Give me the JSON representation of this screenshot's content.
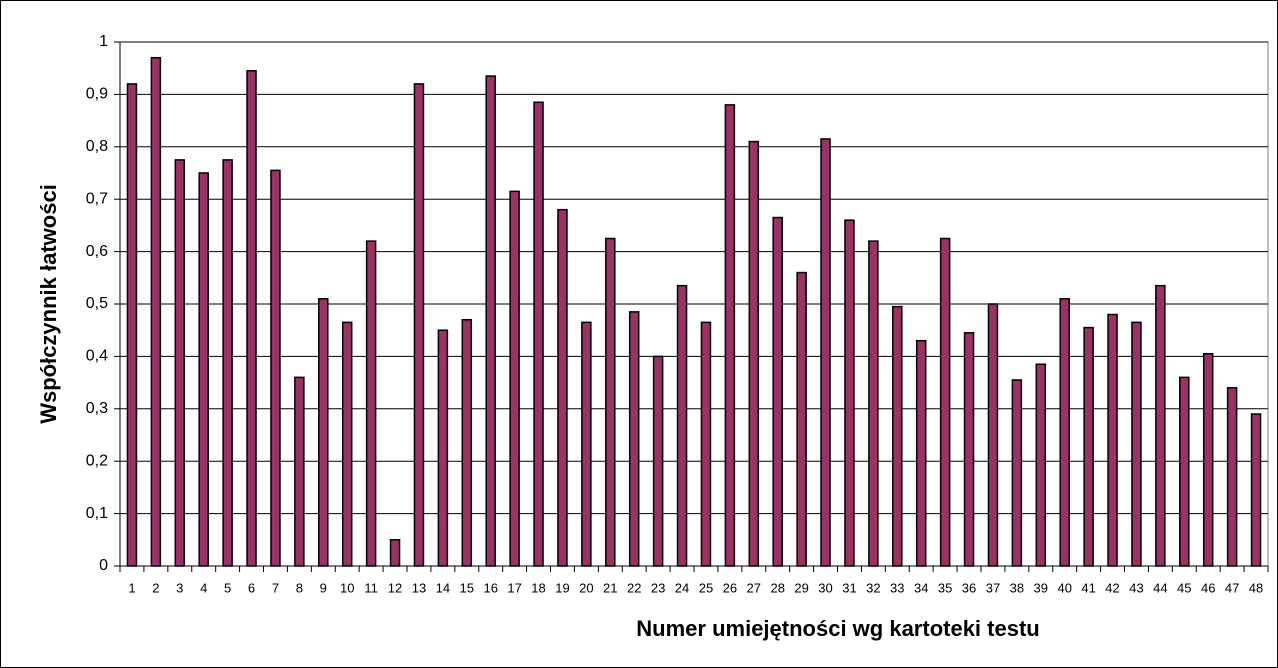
{
  "chart_data": {
    "type": "bar",
    "xlabel": "Numer umiejętności wg kartoteki testu",
    "ylabel": "Współczynnik łatwości",
    "categories": [
      "1",
      "2",
      "3",
      "4",
      "5",
      "6",
      "7",
      "8",
      "9",
      "10",
      "11",
      "12",
      "13",
      "14",
      "15",
      "16",
      "17",
      "18",
      "19",
      "20",
      "21",
      "22",
      "23",
      "24",
      "25",
      "26",
      "27",
      "28",
      "29",
      "30",
      "31",
      "32",
      "33",
      "34",
      "35",
      "36",
      "37",
      "38",
      "39",
      "40",
      "41",
      "42",
      "43",
      "44",
      "45",
      "46",
      "47",
      "48"
    ],
    "values": [
      0.92,
      0.97,
      0.775,
      0.75,
      0.775,
      0.945,
      0.755,
      0.36,
      0.51,
      0.465,
      0.62,
      0.05,
      0.92,
      0.45,
      0.47,
      0.935,
      0.715,
      0.885,
      0.68,
      0.465,
      0.625,
      0.485,
      0.4,
      0.535,
      0.465,
      0.88,
      0.81,
      0.665,
      0.56,
      0.815,
      0.66,
      0.62,
      0.495,
      0.43,
      0.625,
      0.445,
      0.5,
      0.355,
      0.385,
      0.51,
      0.455,
      0.48,
      0.465,
      0.535,
      0.36,
      0.405,
      0.34,
      0.29
    ],
    "color": "#993366",
    "ylim": [
      0,
      1
    ],
    "yticks": [
      0,
      {
        "value": 0.1,
        "label": "0,1"
      },
      {
        "value": 0.2,
        "label": "0,2"
      },
      {
        "value": 0.3,
        "label": "0,3"
      },
      {
        "value": 0.4,
        "label": "0,4"
      },
      {
        "value": 0.5,
        "label": "0,5"
      },
      {
        "value": 0.6,
        "label": "0,6"
      },
      {
        "value": 0.7,
        "label": "0,7"
      },
      {
        "value": 0.8,
        "label": "0,8"
      },
      {
        "value": 0.9,
        "label": "0,9"
      },
      1
    ],
    "grid": true
  }
}
